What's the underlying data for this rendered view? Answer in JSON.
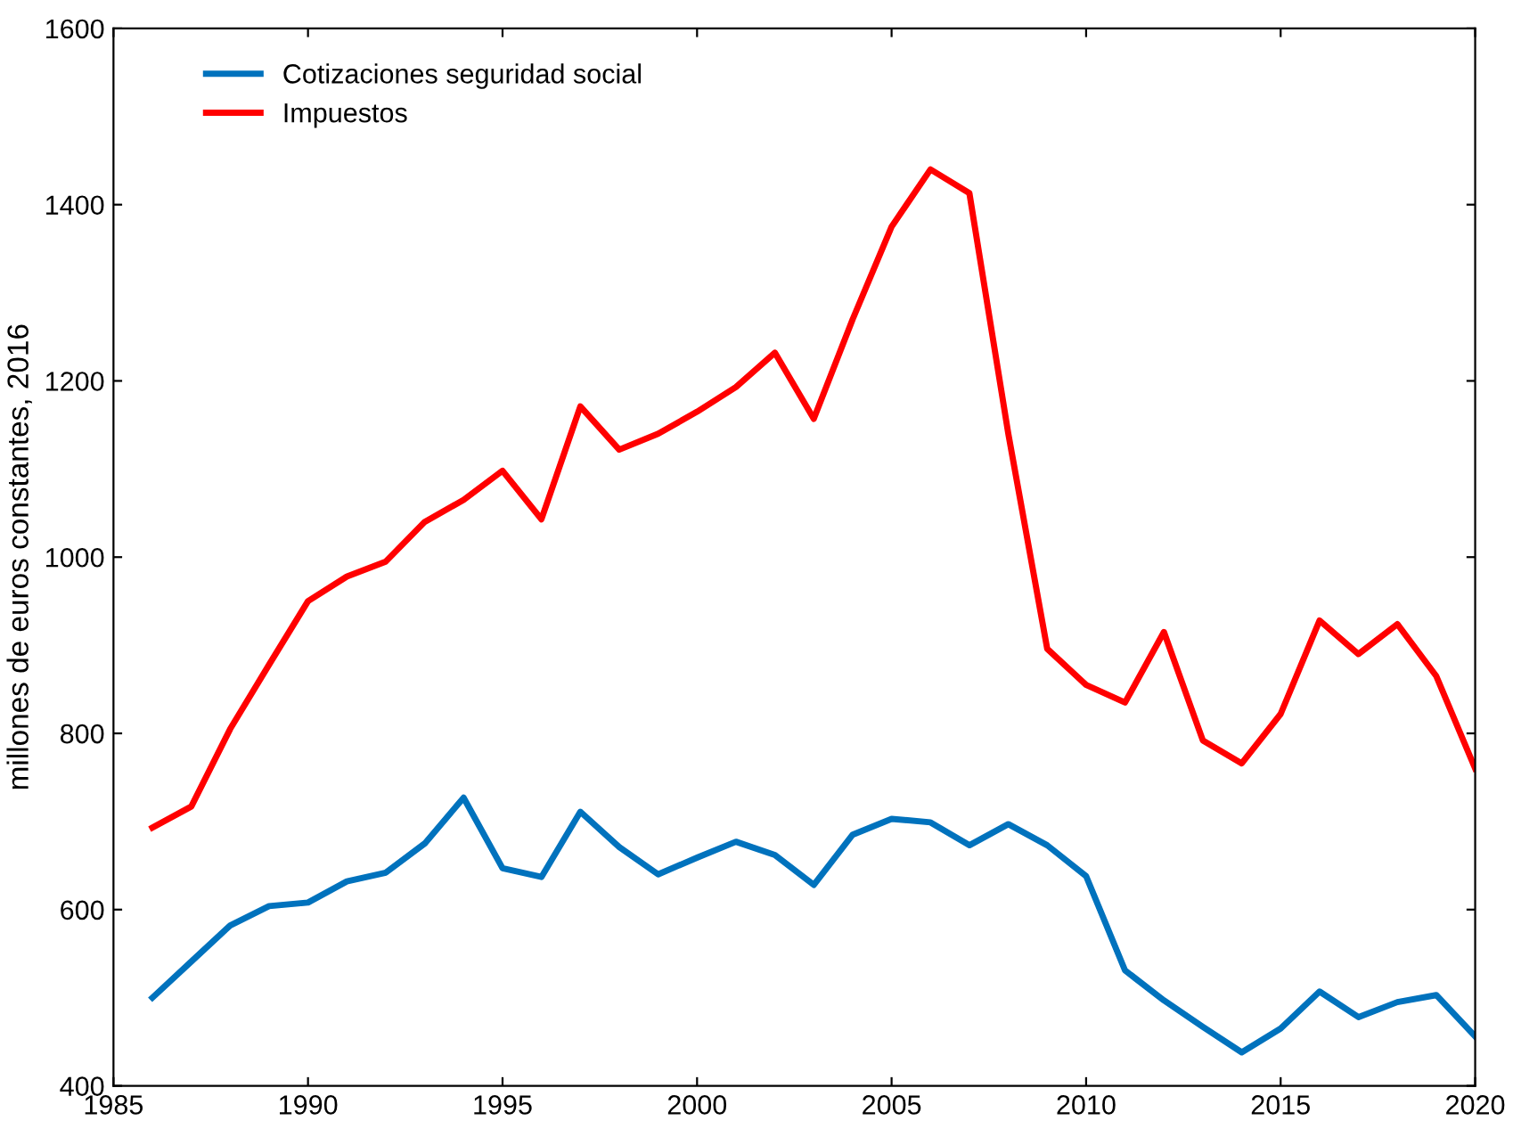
{
  "chart_data": {
    "type": "line",
    "ylabel": "millones de euros constantes, 2016",
    "x": [
      1986,
      1987,
      1988,
      1989,
      1990,
      1991,
      1992,
      1993,
      1994,
      1995,
      1996,
      1997,
      1998,
      1999,
      2000,
      2001,
      2002,
      2003,
      2004,
      2005,
      2006,
      2007,
      2008,
      2009,
      2010,
      2011,
      2012,
      2013,
      2014,
      2015,
      2016,
      2017,
      2018,
      2019,
      2020
    ],
    "series": [
      {
        "name": "Cotizaciones seguridad social",
        "color": "#0072bd",
        "values": [
          500,
          541,
          582,
          604,
          608,
          632,
          642,
          675,
          727,
          647,
          637,
          711,
          671,
          640,
          659,
          677,
          662,
          628,
          685,
          703,
          699,
          673,
          697,
          673,
          638,
          531,
          497,
          467,
          438,
          465,
          507,
          478,
          495,
          503,
          456
        ]
      },
      {
        "name": "Impuestos",
        "color": "#ff0000",
        "values": [
          693,
          717,
          805,
          878,
          950,
          978,
          995,
          1040,
          1065,
          1098,
          1043,
          1171,
          1122,
          1140,
          1165,
          1193,
          1232,
          1157,
          1270,
          1375,
          1440,
          1413,
          1140,
          896,
          855,
          835,
          915,
          792,
          766,
          822,
          928,
          890,
          924,
          865,
          760
        ]
      }
    ],
    "xlim": [
      1985,
      2020
    ],
    "xticks": [
      1985,
      1990,
      1995,
      2000,
      2005,
      2010,
      2015,
      2020
    ],
    "ylim": [
      400,
      1600
    ],
    "yticks": [
      400,
      600,
      800,
      1000,
      1200,
      1400,
      1600
    ],
    "grid": false,
    "legend": "top left",
    "marker": "none",
    "line_style": "solid"
  }
}
